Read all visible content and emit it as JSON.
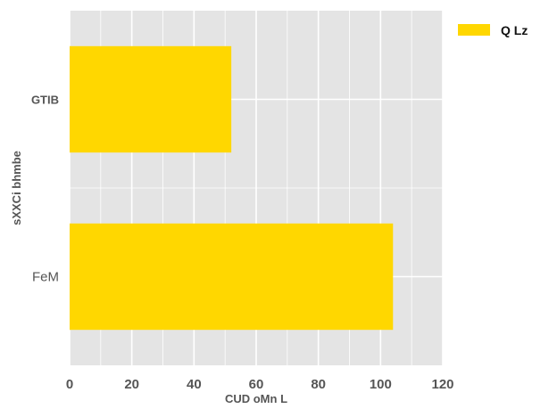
{
  "chart_data": {
    "type": "bar",
    "orientation": "horizontal",
    "categories": [
      "FeM",
      "GTIB"
    ],
    "series": [
      {
        "name": "Q Lz",
        "values": [
          104,
          52
        ],
        "color": "#FFD700"
      }
    ],
    "xlabel": "CUD oMn L",
    "ylabel": "sXXCi bhmbe",
    "xlim": [
      0,
      120
    ],
    "xticks": [
      0,
      20,
      40,
      60,
      80,
      100,
      120
    ],
    "grid": true,
    "legend_position": "top-right",
    "plot_background": "#E4E4E4",
    "grid_color": "#FFFFFF"
  }
}
